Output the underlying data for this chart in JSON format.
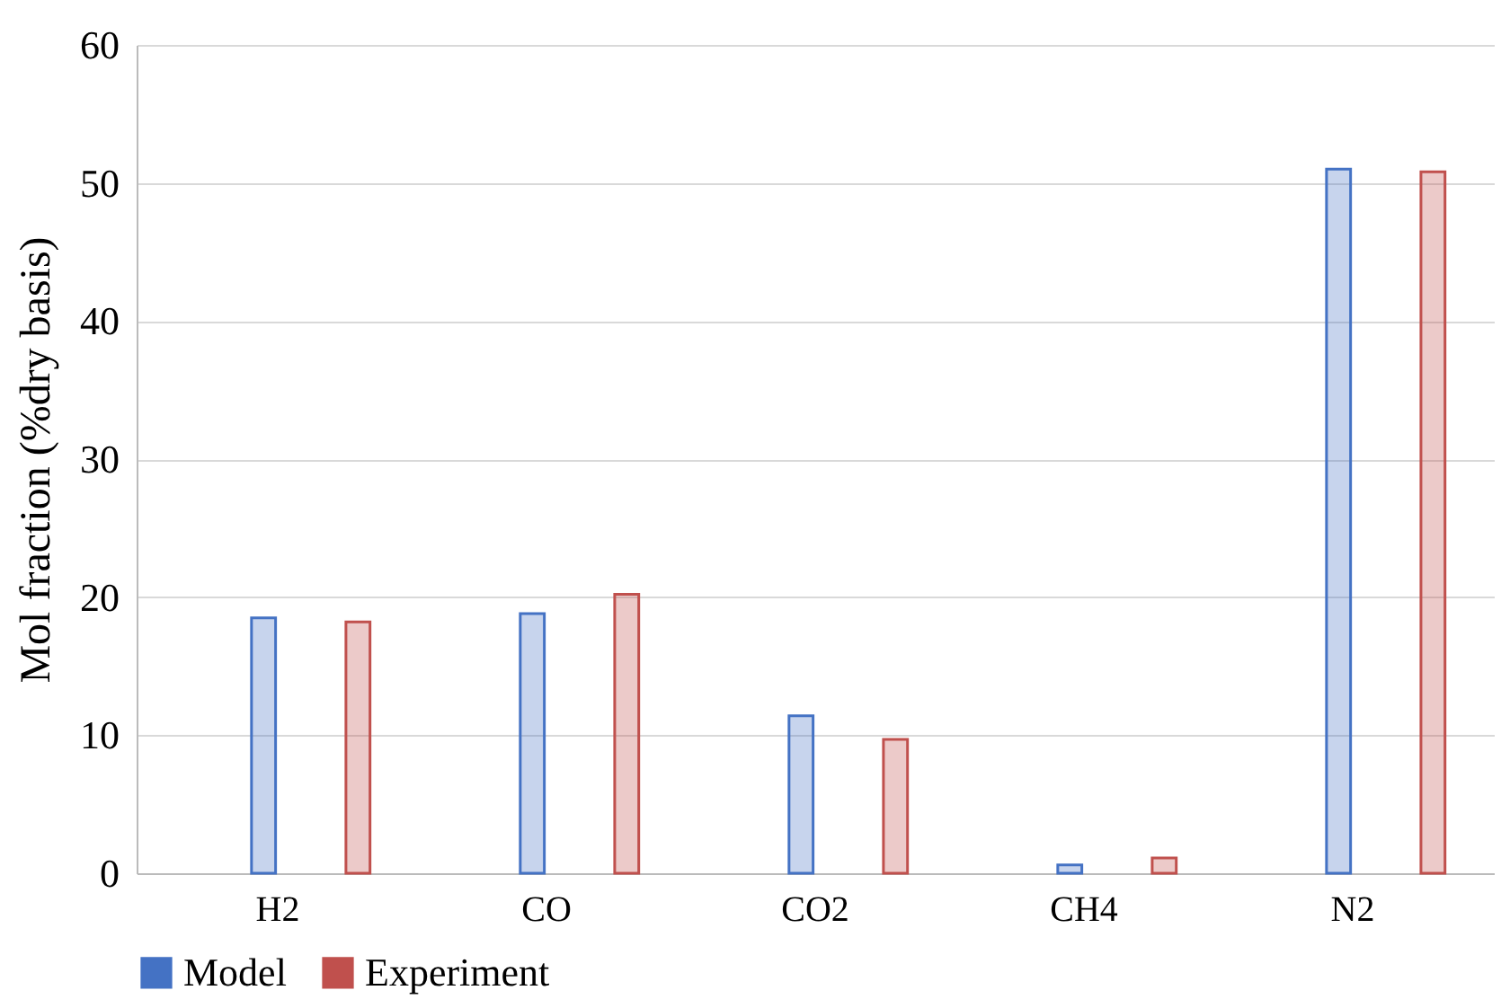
{
  "chart_data": {
    "type": "bar",
    "ylabel": "Mol fraction (%dry basis)",
    "categories": [
      "H2",
      "CO",
      "CO2",
      "CH4",
      "N2"
    ],
    "series": [
      {
        "name": "Model",
        "color": "#4472c4",
        "values": [
          18.5,
          18.8,
          11.4,
          0.6,
          51.0
        ]
      },
      {
        "name": "Experiment",
        "color": "#c0504d",
        "values": [
          18.2,
          20.2,
          9.7,
          1.1,
          50.8
        ]
      }
    ],
    "ylim": [
      0,
      60
    ],
    "yticks": [
      0,
      10,
      20,
      30,
      40,
      50,
      60
    ],
    "grid": "y",
    "legend": "bottom"
  }
}
